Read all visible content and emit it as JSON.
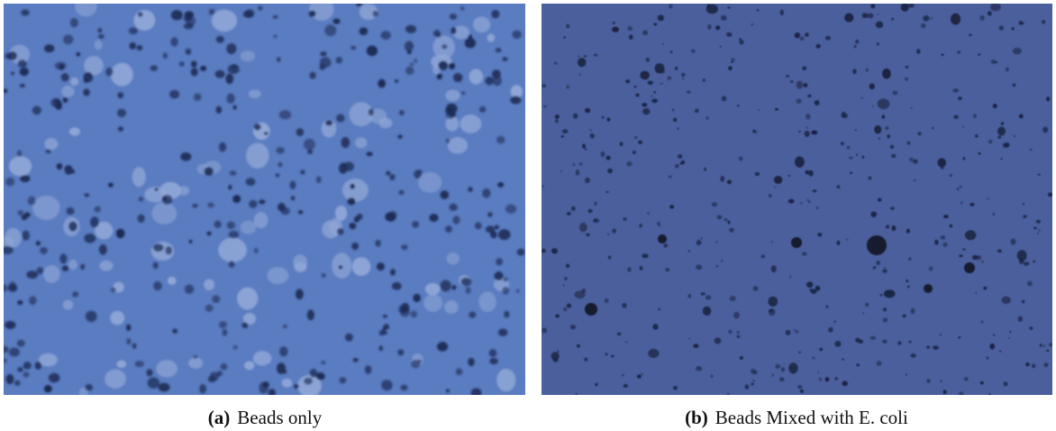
{
  "figure": {
    "panels": [
      {
        "label": "(a)",
        "caption": "Beads only"
      },
      {
        "label": "(b)",
        "caption": "Beads Mixed with E. coli"
      }
    ]
  }
}
